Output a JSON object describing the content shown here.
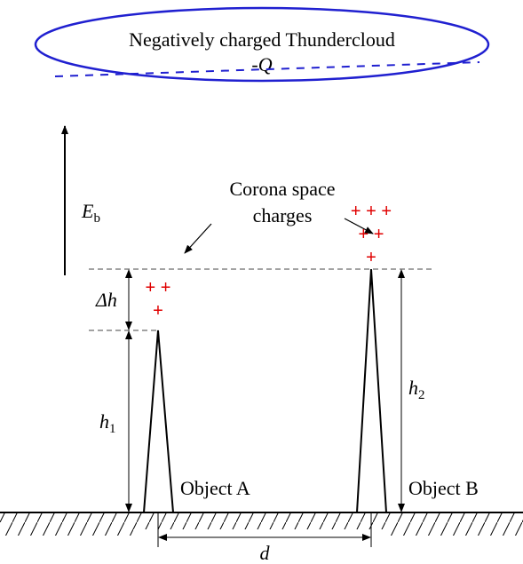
{
  "cloud": {
    "label": "Negatively charged Thundercloud",
    "charge": {
      "sign": "-",
      "symbol": "Q"
    }
  },
  "field": {
    "main": "E",
    "sub": "b"
  },
  "corona": {
    "line1": "Corona space",
    "line2": "charges"
  },
  "charges_b": [
    "+ + +",
    "+ +",
    "+"
  ],
  "charges_a": [
    "+ +",
    "+"
  ],
  "delta_h": {
    "main": "Δh"
  },
  "h1": {
    "main": "h",
    "sub": "1"
  },
  "h2": {
    "main": "h",
    "sub": "2"
  },
  "object_a": "Object A",
  "object_b": "Object B",
  "distance": "d"
}
